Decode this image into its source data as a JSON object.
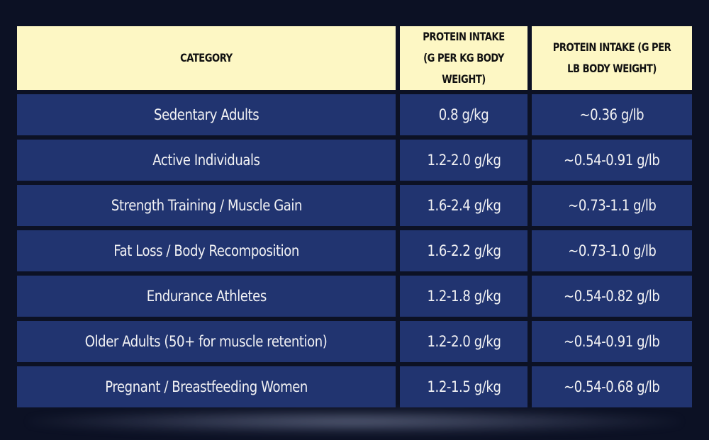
{
  "table": {
    "headers": [
      "CATEGORY",
      "PROTEIN INTAKE (G PER KG BODY WEIGHT)",
      "PROTEIN INTAKE (G PER LB BODY WEIGHT)"
    ],
    "rows": [
      [
        "Sedentary Adults",
        "0.8 g/kg",
        "~0.36 g/lb"
      ],
      [
        "Active Individuals",
        "1.2-2.0 g/kg",
        "~0.54-0.91 g/lb"
      ],
      [
        "Strength Training / Muscle Gain",
        "1.6-2.4 g/kg",
        "~0.73-1.1 g/lb"
      ],
      [
        "Fat Loss / Body Recomposition",
        "1.6-2.2 g/kg",
        "~0.73-1.0 g/lb"
      ],
      [
        "Endurance Athletes",
        "1.2-1.8 g/kg",
        "~0.54-0.82 g/lb"
      ],
      [
        "Older Adults (50+ for muscle retention)",
        "1.2-2.0 g/kg",
        "~0.54-0.91 g/lb"
      ],
      [
        "Pregnant / Breastfeeding Women",
        "1.2-1.5 g/kg",
        "~0.54-0.68 g/lb"
      ]
    ]
  },
  "colors": {
    "background": "#0c1124",
    "header_bg": "#fdf7c4",
    "row_bg": "#213470",
    "row_text": "#f2f2f4"
  }
}
